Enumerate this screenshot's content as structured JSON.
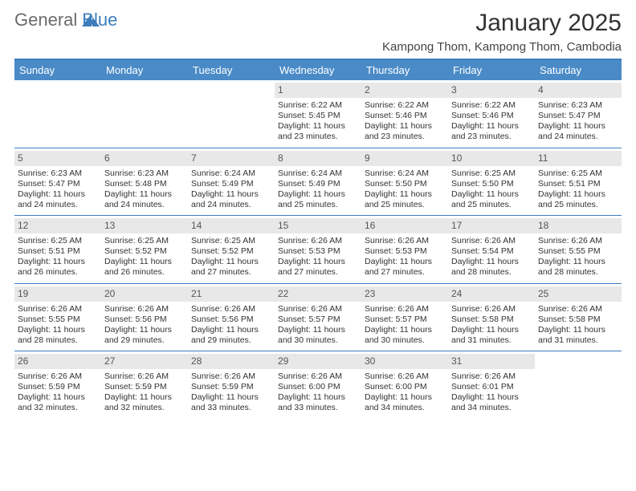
{
  "logo": {
    "text1": "General",
    "text2": "Blue"
  },
  "title": "January 2025",
  "location": "Kampong Thom, Kampong Thom, Cambodia",
  "colors": {
    "header_bg": "#4a8bc7",
    "header_text": "#ffffff",
    "rule": "#3d7dbc",
    "daynum_bg": "#e8e8e8",
    "body_text": "#333333",
    "logo_gray": "#6b6b6b",
    "logo_blue": "#3d7dbc",
    "page_bg": "#ffffff"
  },
  "typography": {
    "title_fontsize": 30,
    "location_fontsize": 15,
    "weekday_fontsize": 13,
    "daynum_fontsize": 12,
    "cell_fontsize": 10.5
  },
  "weekdays": [
    "Sunday",
    "Monday",
    "Tuesday",
    "Wednesday",
    "Thursday",
    "Friday",
    "Saturday"
  ],
  "weeks": [
    [
      null,
      null,
      null,
      {
        "n": "1",
        "sunrise": "6:22 AM",
        "sunset": "5:45 PM",
        "daylight": "11 hours and 23 minutes."
      },
      {
        "n": "2",
        "sunrise": "6:22 AM",
        "sunset": "5:46 PM",
        "daylight": "11 hours and 23 minutes."
      },
      {
        "n": "3",
        "sunrise": "6:22 AM",
        "sunset": "5:46 PM",
        "daylight": "11 hours and 23 minutes."
      },
      {
        "n": "4",
        "sunrise": "6:23 AM",
        "sunset": "5:47 PM",
        "daylight": "11 hours and 24 minutes."
      }
    ],
    [
      {
        "n": "5",
        "sunrise": "6:23 AM",
        "sunset": "5:47 PM",
        "daylight": "11 hours and 24 minutes."
      },
      {
        "n": "6",
        "sunrise": "6:23 AM",
        "sunset": "5:48 PM",
        "daylight": "11 hours and 24 minutes."
      },
      {
        "n": "7",
        "sunrise": "6:24 AM",
        "sunset": "5:49 PM",
        "daylight": "11 hours and 24 minutes."
      },
      {
        "n": "8",
        "sunrise": "6:24 AM",
        "sunset": "5:49 PM",
        "daylight": "11 hours and 25 minutes."
      },
      {
        "n": "9",
        "sunrise": "6:24 AM",
        "sunset": "5:50 PM",
        "daylight": "11 hours and 25 minutes."
      },
      {
        "n": "10",
        "sunrise": "6:25 AM",
        "sunset": "5:50 PM",
        "daylight": "11 hours and 25 minutes."
      },
      {
        "n": "11",
        "sunrise": "6:25 AM",
        "sunset": "5:51 PM",
        "daylight": "11 hours and 25 minutes."
      }
    ],
    [
      {
        "n": "12",
        "sunrise": "6:25 AM",
        "sunset": "5:51 PM",
        "daylight": "11 hours and 26 minutes."
      },
      {
        "n": "13",
        "sunrise": "6:25 AM",
        "sunset": "5:52 PM",
        "daylight": "11 hours and 26 minutes."
      },
      {
        "n": "14",
        "sunrise": "6:25 AM",
        "sunset": "5:52 PM",
        "daylight": "11 hours and 27 minutes."
      },
      {
        "n": "15",
        "sunrise": "6:26 AM",
        "sunset": "5:53 PM",
        "daylight": "11 hours and 27 minutes."
      },
      {
        "n": "16",
        "sunrise": "6:26 AM",
        "sunset": "5:53 PM",
        "daylight": "11 hours and 27 minutes."
      },
      {
        "n": "17",
        "sunrise": "6:26 AM",
        "sunset": "5:54 PM",
        "daylight": "11 hours and 28 minutes."
      },
      {
        "n": "18",
        "sunrise": "6:26 AM",
        "sunset": "5:55 PM",
        "daylight": "11 hours and 28 minutes."
      }
    ],
    [
      {
        "n": "19",
        "sunrise": "6:26 AM",
        "sunset": "5:55 PM",
        "daylight": "11 hours and 28 minutes."
      },
      {
        "n": "20",
        "sunrise": "6:26 AM",
        "sunset": "5:56 PM",
        "daylight": "11 hours and 29 minutes."
      },
      {
        "n": "21",
        "sunrise": "6:26 AM",
        "sunset": "5:56 PM",
        "daylight": "11 hours and 29 minutes."
      },
      {
        "n": "22",
        "sunrise": "6:26 AM",
        "sunset": "5:57 PM",
        "daylight": "11 hours and 30 minutes."
      },
      {
        "n": "23",
        "sunrise": "6:26 AM",
        "sunset": "5:57 PM",
        "daylight": "11 hours and 30 minutes."
      },
      {
        "n": "24",
        "sunrise": "6:26 AM",
        "sunset": "5:58 PM",
        "daylight": "11 hours and 31 minutes."
      },
      {
        "n": "25",
        "sunrise": "6:26 AM",
        "sunset": "5:58 PM",
        "daylight": "11 hours and 31 minutes."
      }
    ],
    [
      {
        "n": "26",
        "sunrise": "6:26 AM",
        "sunset": "5:59 PM",
        "daylight": "11 hours and 32 minutes."
      },
      {
        "n": "27",
        "sunrise": "6:26 AM",
        "sunset": "5:59 PM",
        "daylight": "11 hours and 32 minutes."
      },
      {
        "n": "28",
        "sunrise": "6:26 AM",
        "sunset": "5:59 PM",
        "daylight": "11 hours and 33 minutes."
      },
      {
        "n": "29",
        "sunrise": "6:26 AM",
        "sunset": "6:00 PM",
        "daylight": "11 hours and 33 minutes."
      },
      {
        "n": "30",
        "sunrise": "6:26 AM",
        "sunset": "6:00 PM",
        "daylight": "11 hours and 34 minutes."
      },
      {
        "n": "31",
        "sunrise": "6:26 AM",
        "sunset": "6:01 PM",
        "daylight": "11 hours and 34 minutes."
      },
      null
    ]
  ],
  "labels": {
    "sunrise": "Sunrise:",
    "sunset": "Sunset:",
    "daylight": "Daylight:"
  }
}
